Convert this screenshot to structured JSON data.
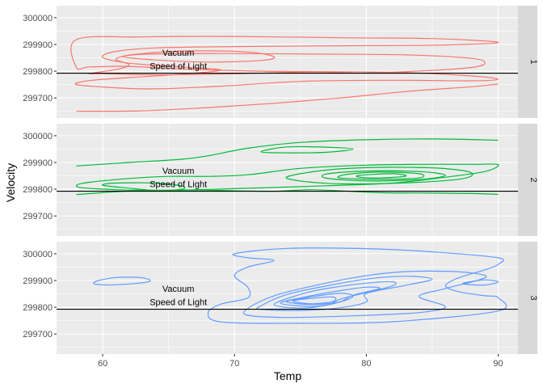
{
  "chart_data": {
    "type": "density_2d_contour_faceted",
    "xlabel": "Temp",
    "ylabel": "Velocity",
    "xlim": [
      56.5,
      91.5
    ],
    "ylim": [
      299625,
      300045
    ],
    "x_ticks": [
      60,
      70,
      80,
      90
    ],
    "y_ticks": [
      299700,
      299800,
      299900,
      300000
    ],
    "hline": 299792.458,
    "annotations": [
      {
        "label": "Vacuum",
        "x": 65,
        "y": 299870
      },
      {
        "label": "Speed of Light",
        "x": 65,
        "y": 299820
      }
    ],
    "facets": [
      {
        "strip": "1",
        "color": "#F8766D",
        "contours": [
          [
            [
              58,
              299918
            ],
            [
              63,
              299928
            ],
            [
              70,
              299930
            ],
            [
              78,
              299925
            ],
            [
              85,
              299922
            ],
            [
              90,
              299908
            ],
            [
              86,
              299898
            ],
            [
              78,
              299895
            ],
            [
              70,
              299892
            ],
            [
              64,
              299887
            ],
            [
              61,
              299874
            ],
            [
              60,
              299852
            ],
            [
              62,
              299830
            ],
            [
              66,
              299816
            ],
            [
              69,
              299804
            ],
            [
              66,
              299789
            ],
            [
              62,
              299776
            ],
            [
              59,
              299765
            ],
            [
              58,
              299750
            ],
            [
              61,
              299738
            ],
            [
              64,
              299734
            ],
            [
              69,
              299744
            ],
            [
              75,
              299762
            ],
            [
              82,
              299766
            ],
            [
              88,
              299764
            ],
            [
              90,
              299770
            ],
            [
              88,
              299782
            ],
            [
              82,
              299796
            ],
            [
              72,
              299800
            ],
            [
              66,
              299808
            ],
            [
              62,
              299818
            ],
            [
              59,
              299816
            ],
            [
              58,
              299814
            ]
          ],
          [
            [
              60,
              299791
            ],
            [
              63,
              299787
            ],
            [
              66,
              299787
            ],
            [
              70,
              299790
            ],
            [
              76,
              299797
            ],
            [
              80,
              299793
            ],
            [
              85,
              299803
            ],
            [
              88,
              299814
            ],
            [
              89,
              299830
            ],
            [
              88,
              299848
            ],
            [
              83,
              299861
            ],
            [
              76,
              299864
            ],
            [
              69,
              299866
            ],
            [
              63,
              299863
            ],
            [
              61,
              299846
            ],
            [
              62,
              299824
            ],
            [
              61,
              299806
            ],
            [
              59,
              299791
            ]
          ],
          [
            [
              61.5,
              299855
            ],
            [
              64,
              299870
            ],
            [
              67,
              299876
            ],
            [
              71,
              299872
            ],
            [
              73,
              299854
            ],
            [
              72,
              299840
            ],
            [
              68,
              299834
            ],
            [
              64,
              299842
            ]
          ],
          [
            [
              58,
              299650
            ],
            [
              63,
              299652
            ],
            [
              68,
              299664
            ],
            [
              73,
              299680
            ],
            [
              78,
              299700
            ],
            [
              83,
              299724
            ],
            [
              88,
              299742
            ],
            [
              90,
              299752
            ]
          ]
        ]
      },
      {
        "strip": "2",
        "color": "#00BA38",
        "contours": [
          [
            [
              58,
              299887
            ],
            [
              62,
              299900
            ],
            [
              66,
              299912
            ],
            [
              68,
              299925
            ],
            [
              71,
              299953
            ],
            [
              75,
              299975
            ],
            [
              80,
              299985
            ],
            [
              85,
              299988
            ],
            [
              90,
              299983
            ]
          ],
          [
            [
              58,
              299780
            ],
            [
              62,
              299793
            ],
            [
              67,
              299797
            ],
            [
              70,
              299794
            ],
            [
              73,
              299792
            ],
            [
              76,
              299798
            ],
            [
              81,
              299787
            ],
            [
              84,
              299786
            ],
            [
              88,
              299784
            ],
            [
              90,
              299781
            ]
          ],
          [
            [
              60,
              299815
            ],
            [
              62,
              299804
            ],
            [
              64,
              299796
            ],
            [
              66,
              299800
            ],
            [
              66,
              299812
            ],
            [
              64,
              299823
            ],
            [
              61,
              299823
            ]
          ],
          [
            [
              59,
              299826
            ],
            [
              62,
              299840
            ],
            [
              65,
              299848
            ],
            [
              68,
              299848
            ],
            [
              71,
              299854
            ],
            [
              75,
              299878
            ],
            [
              80,
              299890
            ],
            [
              84,
              299893
            ],
            [
              88,
              299893
            ],
            [
              90,
              299892
            ],
            [
              89,
              299866
            ],
            [
              86,
              299845
            ],
            [
              82,
              299823
            ],
            [
              77,
              299813
            ],
            [
              70,
              299802
            ],
            [
              64,
              299796
            ],
            [
              59,
              299803
            ],
            [
              58,
              299814
            ]
          ],
          [
            [
              72,
              299940
            ],
            [
              74,
              299958
            ],
            [
              77,
              299957
            ],
            [
              79,
              299950
            ],
            [
              77,
              299938
            ],
            [
              74,
              299936
            ]
          ],
          [
            [
              75,
              299858
            ],
            [
              78,
              299876
            ],
            [
              82,
              299882
            ],
            [
              86,
              299877
            ],
            [
              88,
              299860
            ],
            [
              87,
              299837
            ],
            [
              82,
              299822
            ],
            [
              77,
              299822
            ],
            [
              74,
              299840
            ]
          ],
          [
            [
              77,
              299857
            ],
            [
              80,
              299868
            ],
            [
              84,
              299866
            ],
            [
              86,
              299852
            ],
            [
              84,
              299836
            ],
            [
              80,
              299831
            ],
            [
              77,
              299841
            ]
          ],
          [
            [
              78.5,
              299855
            ],
            [
              81,
              299864
            ],
            [
              84,
              299858
            ],
            [
              84,
              299842
            ],
            [
              81,
              299837
            ],
            [
              78,
              299842
            ]
          ],
          [
            [
              79.5,
              299852
            ],
            [
              82,
              299858
            ],
            [
              83,
              299849
            ],
            [
              81,
              299842
            ],
            [
              79.5,
              299845
            ]
          ]
        ]
      },
      {
        "strip": "3",
        "color": "#619CFF",
        "contours": [
          [
            [
              59.5,
              299897
            ],
            [
              61,
              299911
            ],
            [
              63,
              299910
            ],
            [
              63.5,
              299895
            ],
            [
              61,
              299884
            ],
            [
              59.5,
              299886
            ]
          ],
          [
            [
              87.5,
              299892
            ],
            [
              89,
              299902
            ],
            [
              90,
              299895
            ],
            [
              89,
              299883
            ],
            [
              87.5,
              299886
            ]
          ],
          [
            [
              70,
              300000
            ],
            [
              74,
              300020
            ],
            [
              80,
              300019
            ],
            [
              85,
              300007
            ],
            [
              90,
              299985
            ],
            [
              90,
              299960
            ],
            [
              89,
              299940
            ],
            [
              87,
              299910
            ],
            [
              86,
              299880
            ],
            [
              87,
              299858
            ],
            [
              89,
              299843
            ],
            [
              90,
              299836
            ],
            [
              90,
              299786
            ],
            [
              82,
              299746
            ],
            [
              75,
              299740
            ],
            [
              69,
              299745
            ],
            [
              68,
              299780
            ],
            [
              69,
              299812
            ],
            [
              71,
              299835
            ],
            [
              71,
              299875
            ],
            [
              70,
              299918
            ],
            [
              71,
              299950
            ],
            [
              73,
              299975
            ],
            [
              71,
              299985
            ]
          ],
          [
            [
              71,
              299795
            ],
            [
              73,
              299843
            ],
            [
              76,
              299880
            ],
            [
              79,
              299910
            ],
            [
              82,
              299930
            ],
            [
              85,
              299935
            ],
            [
              88,
              299928
            ],
            [
              89,
              299910
            ],
            [
              86,
              299870
            ],
            [
              84,
              299840
            ],
            [
              86,
              299802
            ],
            [
              84,
              299780
            ],
            [
              79,
              299768
            ],
            [
              74,
              299762
            ],
            [
              71,
              299770
            ]
          ],
          [
            [
              72,
              299805
            ],
            [
              74,
              299848
            ],
            [
              77,
              299880
            ],
            [
              80,
              299905
            ],
            [
              83,
              299916
            ],
            [
              85,
              299905
            ],
            [
              83,
              299882
            ],
            [
              80,
              299852
            ],
            [
              80,
              299820
            ],
            [
              78,
              299798
            ],
            [
              75,
              299788
            ],
            [
              72,
              299792
            ]
          ],
          [
            [
              73,
              299810
            ],
            [
              75,
              299848
            ],
            [
              77,
              299870
            ],
            [
              80,
              299890
            ],
            [
              82,
              299895
            ],
            [
              82,
              299880
            ],
            [
              80,
              299855
            ],
            [
              78,
              299830
            ],
            [
              77,
              299808
            ],
            [
              75,
              299797
            ]
          ],
          [
            [
              73.5,
              299815
            ],
            [
              75.5,
              299840
            ],
            [
              78,
              299862
            ],
            [
              80,
              299875
            ],
            [
              81,
              299870
            ],
            [
              79,
              299845
            ],
            [
              78,
              299820
            ],
            [
              76,
              299803
            ]
          ],
          [
            [
              74,
              299823
            ],
            [
              76,
              299840
            ],
            [
              78,
              299852
            ],
            [
              79,
              299842
            ],
            [
              78,
              299820
            ],
            [
              76,
              299810
            ],
            [
              74.5,
              299815
            ]
          ],
          [
            [
              74.5,
              299825
            ],
            [
              76,
              299834
            ],
            [
              77.5,
              299838
            ],
            [
              77.5,
              299822
            ],
            [
              76,
              299813
            ],
            [
              74.8,
              299818
            ]
          ]
        ]
      }
    ]
  }
}
